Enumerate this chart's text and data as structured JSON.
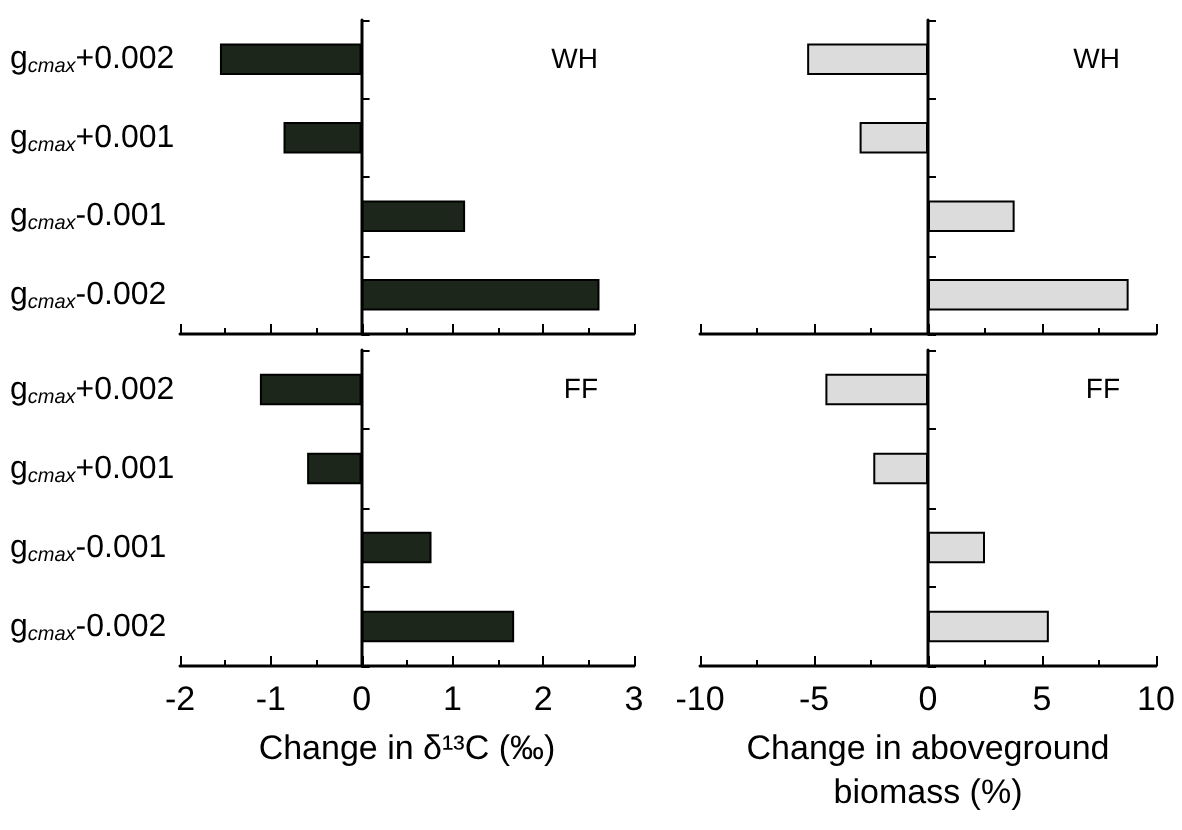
{
  "chart_data": [
    {
      "type": "bar",
      "orientation": "horizontal",
      "categories": [
        "g$_{cmax}$+0.002",
        "g$_{cmax}$+0.001",
        "g$_{cmax}$-0.001",
        "g$_{cmax}$-0.002"
      ],
      "values": [
        -1.56,
        -0.86,
        1.14,
        2.62
      ],
      "color": "#1c261a",
      "xlim": [
        -2,
        3
      ],
      "xticks": [
        -2,
        -1,
        0,
        1,
        2,
        3
      ],
      "tick_labels": "y",
      "annotations": [
        "WH"
      ]
    },
    {
      "type": "bar",
      "orientation": "horizontal",
      "categories": [
        null,
        null,
        null,
        null
      ],
      "values": [
        -5.3,
        -3.0,
        3.8,
        8.8
      ],
      "color": "#dcdcdc",
      "xlim": [
        -10,
        10
      ],
      "xticks": [
        -10,
        -5,
        0,
        5,
        10
      ],
      "tick_labels": false,
      "annotations": [
        "WH"
      ]
    },
    {
      "type": "bar",
      "orientation": "horizontal",
      "categories": [
        "g$_{cmax}$+0.002",
        "g$_{cmax}$+0.001",
        "g$_{cmax}$-0.001",
        "g$_{cmax}$-0.002"
      ],
      "values": [
        -1.12,
        -0.6,
        0.77,
        1.68
      ],
      "color": "#1c261a",
      "xlim": [
        -2,
        3
      ],
      "xticks": [
        -2,
        -1,
        0,
        1,
        2,
        3
      ],
      "xlabel": "Change in δ¹³C (‰)",
      "annotations": [
        "FF"
      ]
    },
    {
      "type": "bar",
      "orientation": "horizontal",
      "categories": [
        null,
        null,
        null,
        null
      ],
      "values": [
        -4.5,
        -2.4,
        2.5,
        5.3
      ],
      "color": "#dcdcdc",
      "xlim": [
        -10,
        10
      ],
      "xticks": [
        -10,
        -5,
        0,
        5,
        10
      ],
      "tick_labels": "x",
      "xlabel": "Change in aboveground biomass (%)",
      "annotations": [
        "FF"
      ]
    }
  ]
}
